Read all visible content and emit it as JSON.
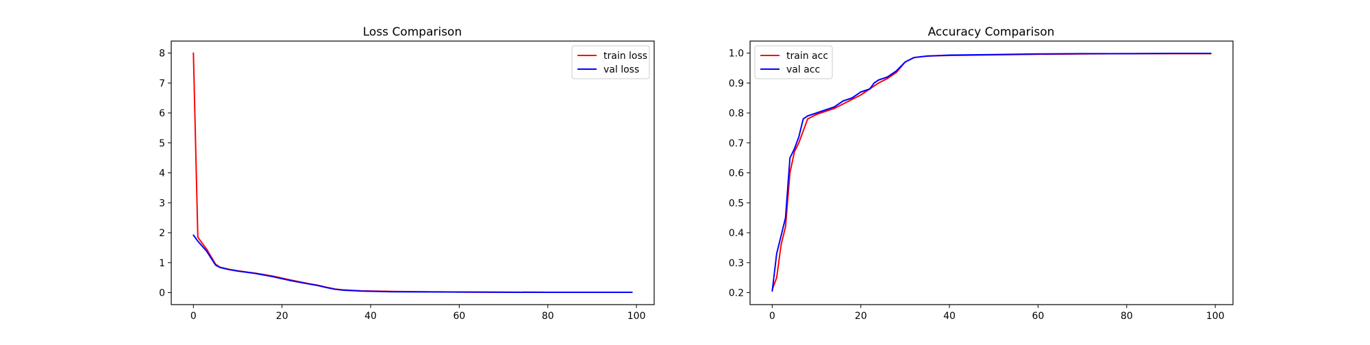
{
  "chart_data": [
    {
      "type": "line",
      "title": "Loss Comparison",
      "xlabel": "",
      "ylabel": "",
      "xlim": [
        -5,
        104
      ],
      "ylim": [
        -0.4,
        8.4
      ],
      "xticks": [
        0,
        20,
        40,
        60,
        80,
        100
      ],
      "yticks": [
        0,
        1,
        2,
        3,
        4,
        5,
        6,
        7,
        8
      ],
      "legend_loc": "upper right",
      "grid": false,
      "series": [
        {
          "name": "train loss",
          "color": "#ff0000",
          "x": [
            0,
            1,
            2,
            3,
            4,
            5,
            6,
            8,
            10,
            14,
            18,
            22,
            26,
            28,
            30,
            32,
            34,
            38,
            45,
            60,
            80,
            99
          ],
          "y": [
            8.0,
            1.85,
            1.65,
            1.45,
            1.2,
            0.95,
            0.85,
            0.78,
            0.73,
            0.65,
            0.55,
            0.42,
            0.3,
            0.25,
            0.18,
            0.12,
            0.09,
            0.06,
            0.04,
            0.02,
            0.01,
            0.01
          ]
        },
        {
          "name": "val loss",
          "color": "#0000ff",
          "x": [
            0,
            1,
            2,
            3,
            4,
            5,
            6,
            8,
            10,
            14,
            18,
            22,
            26,
            28,
            30,
            32,
            34,
            38,
            45,
            60,
            80,
            99
          ],
          "y": [
            1.92,
            1.72,
            1.55,
            1.38,
            1.15,
            0.92,
            0.84,
            0.77,
            0.72,
            0.64,
            0.53,
            0.4,
            0.29,
            0.24,
            0.17,
            0.11,
            0.08,
            0.05,
            0.03,
            0.02,
            0.01,
            0.01
          ]
        }
      ]
    },
    {
      "type": "line",
      "title": "Accuracy Comparison",
      "xlabel": "",
      "ylabel": "",
      "xlim": [
        -5,
        104
      ],
      "ylim": [
        0.16,
        1.04
      ],
      "xticks": [
        0,
        20,
        40,
        60,
        80,
        100
      ],
      "yticks": [
        0.2,
        0.3,
        0.4,
        0.5,
        0.6,
        0.7,
        0.8,
        0.9,
        1.0
      ],
      "ytick_labels": [
        "0.2",
        "0.3",
        "0.4",
        "0.5",
        "0.6",
        "0.7",
        "0.8",
        "0.9",
        "1.0"
      ],
      "legend_loc": "upper left",
      "grid": false,
      "series": [
        {
          "name": "train acc",
          "color": "#ff0000",
          "x": [
            0,
            1,
            2,
            3,
            4,
            5,
            6,
            7,
            8,
            10,
            12,
            14,
            16,
            18,
            20,
            22,
            24,
            26,
            28,
            30,
            32,
            35,
            40,
            50,
            60,
            70,
            80,
            90,
            99
          ],
          "y": [
            0.21,
            0.25,
            0.36,
            0.42,
            0.6,
            0.67,
            0.7,
            0.74,
            0.78,
            0.795,
            0.805,
            0.815,
            0.83,
            0.845,
            0.86,
            0.88,
            0.9,
            0.915,
            0.935,
            0.97,
            0.985,
            0.99,
            0.992,
            0.994,
            0.996,
            0.997,
            0.998,
            0.998,
            0.998
          ]
        },
        {
          "name": "val acc",
          "color": "#0000ff",
          "x": [
            0,
            1,
            2,
            3,
            4,
            5,
            6,
            7,
            8,
            10,
            12,
            14,
            16,
            18,
            20,
            22,
            23,
            24,
            26,
            28,
            30,
            32,
            35,
            40,
            50,
            60,
            70,
            80,
            90,
            99
          ],
          "y": [
            0.205,
            0.33,
            0.39,
            0.45,
            0.65,
            0.68,
            0.72,
            0.78,
            0.79,
            0.8,
            0.81,
            0.82,
            0.84,
            0.85,
            0.87,
            0.88,
            0.9,
            0.91,
            0.92,
            0.94,
            0.97,
            0.985,
            0.99,
            0.993,
            0.995,
            0.997,
            0.998,
            0.998,
            0.999,
            0.999
          ]
        }
      ]
    }
  ]
}
